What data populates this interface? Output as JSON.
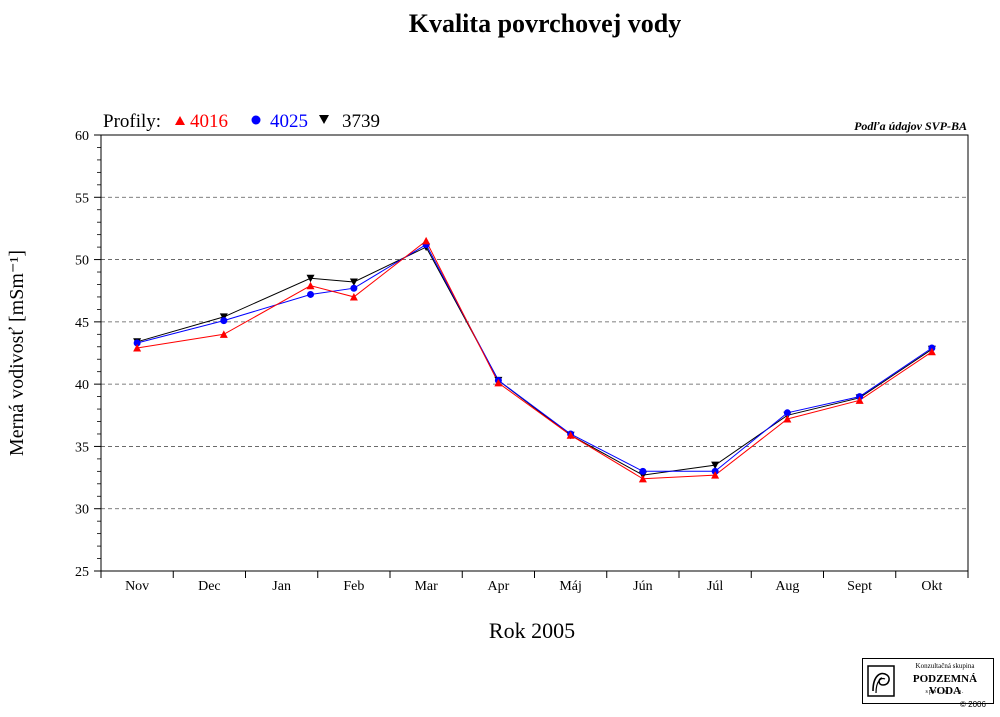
{
  "chart_data": {
    "type": "line",
    "title": "Kvalita povrchovej vody",
    "xlabel": "Rok 2005",
    "ylabel": "Merná vodivosť [mSm⁻¹]",
    "source_note": "Podľa údajov SVP-BA",
    "legend_prefix": "Profily:",
    "categories": [
      "Nov",
      "Dec",
      "Jan",
      "Feb",
      "Mar",
      "Apr",
      "Máj",
      "Jún",
      "Júl",
      "Aug",
      "Sept",
      "Okt"
    ],
    "ylim": [
      25,
      60
    ],
    "yticks": [
      25,
      30,
      35,
      40,
      45,
      50,
      55,
      60
    ],
    "grid": "horizontal dashed",
    "series": [
      {
        "name": "4016",
        "color": "#ff0000",
        "marker": "triangle-up",
        "points": [
          {
            "x": 0.0,
            "y": 42.9
          },
          {
            "x": 1.2,
            "y": 44.0
          },
          {
            "x": 2.4,
            "y": 47.9
          },
          {
            "x": 3.0,
            "y": 47.0
          },
          {
            "x": 4.0,
            "y": 51.5
          },
          {
            "x": 5.0,
            "y": 40.1
          },
          {
            "x": 6.0,
            "y": 35.9
          },
          {
            "x": 7.0,
            "y": 32.4
          },
          {
            "x": 8.0,
            "y": 32.7
          },
          {
            "x": 9.0,
            "y": 37.2
          },
          {
            "x": 10.0,
            "y": 38.7
          },
          {
            "x": 11.0,
            "y": 42.6
          }
        ]
      },
      {
        "name": "4025",
        "color": "#0000ff",
        "marker": "circle",
        "points": [
          {
            "x": 0.0,
            "y": 43.3
          },
          {
            "x": 1.2,
            "y": 45.1
          },
          {
            "x": 2.4,
            "y": 47.2
          },
          {
            "x": 3.0,
            "y": 47.7
          },
          {
            "x": 4.0,
            "y": 51.2
          },
          {
            "x": 5.0,
            "y": 40.3
          },
          {
            "x": 6.0,
            "y": 36.0
          },
          {
            "x": 7.0,
            "y": 33.0
          },
          {
            "x": 8.0,
            "y": 33.0
          },
          {
            "x": 9.0,
            "y": 37.7
          },
          {
            "x": 10.0,
            "y": 39.0
          },
          {
            "x": 11.0,
            "y": 42.9
          }
        ]
      },
      {
        "name": "3739",
        "color": "#000000",
        "marker": "triangle-down",
        "points": [
          {
            "x": 0.0,
            "y": 43.4
          },
          {
            "x": 1.2,
            "y": 45.4
          },
          {
            "x": 2.4,
            "y": 48.5
          },
          {
            "x": 3.0,
            "y": 48.2
          },
          {
            "x": 4.0,
            "y": 51.0
          },
          {
            "x": 5.0,
            "y": 40.3
          },
          {
            "x": 6.0,
            "y": 35.9
          },
          {
            "x": 7.0,
            "y": 32.7
          },
          {
            "x": 8.0,
            "y": 33.5
          },
          {
            "x": 9.0,
            "y": 37.5
          },
          {
            "x": 10.0,
            "y": 38.9
          },
          {
            "x": 11.0,
            "y": 42.8
          }
        ]
      }
    ]
  },
  "logo": {
    "line1": "Konzultačná skupina",
    "line2": "PODZEMNÁ VODA",
    "line3": "spol. s r. o."
  },
  "copyright": "© 2006"
}
